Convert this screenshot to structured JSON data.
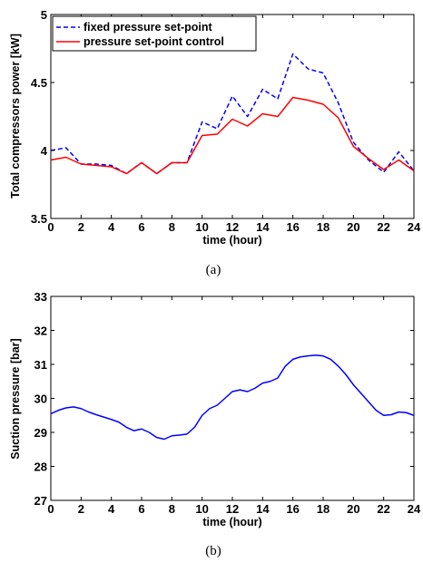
{
  "chart_data": [
    {
      "type": "line",
      "caption": "(a)",
      "xlabel": "time (hour)",
      "ylabel": "Total compressors power [kW]",
      "xlim": [
        0,
        24
      ],
      "ylim": [
        3.5,
        5
      ],
      "xticks": [
        0,
        2,
        4,
        6,
        8,
        10,
        12,
        14,
        16,
        18,
        20,
        22,
        24
      ],
      "yticks": [
        3.5,
        4,
        4.5,
        5
      ],
      "ytick_labels": [
        "3.5",
        "4",
        "4.5",
        "5"
      ],
      "grid": false,
      "legend": "top-left",
      "x": [
        0,
        1,
        2,
        3,
        4,
        5,
        6,
        7,
        8,
        9,
        10,
        11,
        12,
        13,
        14,
        15,
        16,
        17,
        18,
        19,
        20,
        21,
        22,
        23,
        24
      ],
      "series": [
        {
          "name": "fixed pressure set-point",
          "color": "#0000ff",
          "style": "dashed",
          "values": [
            4.0,
            4.02,
            3.9,
            3.9,
            3.89,
            3.83,
            3.91,
            3.83,
            3.91,
            3.91,
            4.21,
            4.16,
            4.4,
            4.25,
            4.45,
            4.38,
            4.71,
            4.6,
            4.57,
            4.35,
            4.06,
            3.93,
            3.84,
            3.99,
            3.85
          ]
        },
        {
          "name": "pressure set-point control",
          "color": "#ff0000",
          "style": "solid",
          "values": [
            3.93,
            3.95,
            3.9,
            3.89,
            3.88,
            3.83,
            3.91,
            3.83,
            3.91,
            3.91,
            4.11,
            4.12,
            4.23,
            4.18,
            4.27,
            4.25,
            4.39,
            4.37,
            4.34,
            4.24,
            4.03,
            3.94,
            3.86,
            3.93,
            3.85
          ]
        }
      ]
    },
    {
      "type": "line",
      "caption": "(b)",
      "xlabel": "time (hour)",
      "ylabel": "Suction pressure [bar]",
      "xlim": [
        0,
        24
      ],
      "ylim": [
        27,
        33
      ],
      "xticks": [
        0,
        2,
        4,
        6,
        8,
        10,
        12,
        14,
        16,
        18,
        20,
        22,
        24
      ],
      "yticks": [
        27,
        28,
        29,
        30,
        31,
        32,
        33
      ],
      "ytick_labels": [
        "27",
        "28",
        "29",
        "30",
        "31",
        "32",
        "33"
      ],
      "grid": false,
      "x": [
        0,
        0.5,
        1,
        1.5,
        2,
        2.5,
        3,
        3.5,
        4,
        4.5,
        5,
        5.5,
        6,
        6.5,
        7,
        7.5,
        8,
        8.5,
        9,
        9.5,
        10,
        10.5,
        11,
        11.5,
        12,
        12.5,
        13,
        13.5,
        14,
        14.5,
        15,
        15.5,
        16,
        16.5,
        17,
        17.5,
        18,
        18.5,
        19,
        19.5,
        20,
        20.5,
        21,
        21.5,
        22,
        22.5,
        23,
        23.5,
        24
      ],
      "series": [
        {
          "color": "#0000ff",
          "style": "solid",
          "values": [
            29.55,
            29.65,
            29.72,
            29.75,
            29.7,
            29.6,
            29.52,
            29.45,
            29.38,
            29.3,
            29.15,
            29.05,
            29.1,
            29.0,
            28.85,
            28.8,
            28.9,
            28.92,
            28.95,
            29.15,
            29.5,
            29.7,
            29.8,
            30.0,
            30.2,
            30.25,
            30.2,
            30.3,
            30.45,
            30.5,
            30.6,
            30.95,
            31.15,
            31.22,
            31.25,
            31.27,
            31.25,
            31.15,
            30.95,
            30.7,
            30.4,
            30.15,
            29.9,
            29.65,
            29.5,
            29.52,
            29.6,
            29.58,
            29.5
          ]
        }
      ]
    }
  ]
}
